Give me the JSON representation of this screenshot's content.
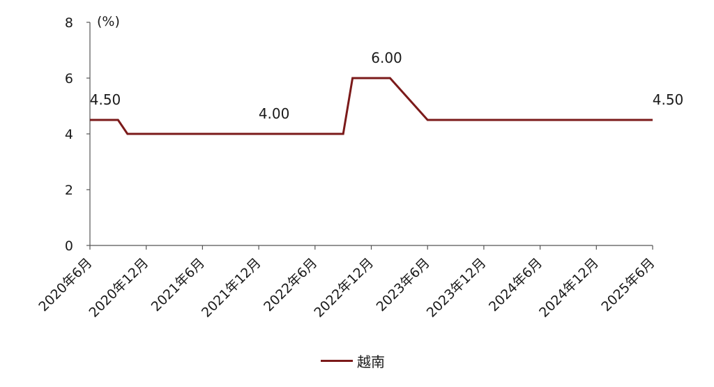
{
  "chart_data": {
    "type": "line",
    "ylabel": "(%)",
    "ylim": [
      0,
      8
    ],
    "yticks": [
      "0",
      "2",
      "4",
      "6",
      "8"
    ],
    "x_start": "2020-06",
    "x_end": "2025-06",
    "xtick_labels": [
      "2020年6月",
      "2020年12月",
      "2021年6月",
      "2021年12月",
      "2022年6月",
      "2022年12月",
      "2023年6月",
      "2023年12月",
      "2024年6月",
      "2024年12月",
      "2025年6月"
    ],
    "series": [
      {
        "name": "越南",
        "color": "#7B1A1A",
        "points": [
          {
            "x": "2020-06",
            "y": 4.5
          },
          {
            "x": "2020-09",
            "y": 4.5
          },
          {
            "x": "2020-10",
            "y": 4.0
          },
          {
            "x": "2022-09",
            "y": 4.0
          },
          {
            "x": "2022-10",
            "y": 6.0
          },
          {
            "x": "2023-02",
            "y": 6.0
          },
          {
            "x": "2023-06",
            "y": 4.5
          },
          {
            "x": "2025-06",
            "y": 4.5
          }
        ]
      }
    ],
    "annotations": [
      {
        "x": "2020-06",
        "y": 4.5,
        "text": "4.50"
      },
      {
        "x": "2021-12",
        "y": 4.0,
        "text": "4.00"
      },
      {
        "x": "2022-12",
        "y": 6.0,
        "text": "6.00"
      },
      {
        "x": "2025-06",
        "y": 4.5,
        "text": "4.50"
      }
    ],
    "legend": "bottom-center",
    "grid": false
  }
}
